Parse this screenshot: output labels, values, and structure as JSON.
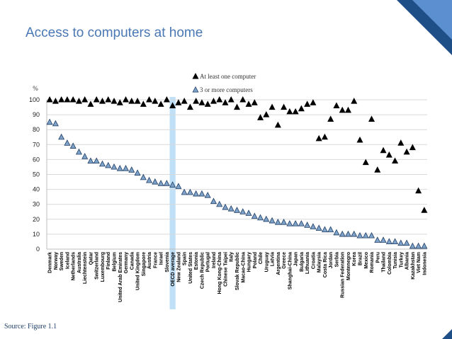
{
  "page": {
    "title": "Access to computers at home",
    "source": "Source: Figure 1.1"
  },
  "chart_data": {
    "type": "scatter",
    "ylabel": "%",
    "ylim": [
      0,
      100
    ],
    "yticks": [
      0,
      10,
      20,
      30,
      40,
      50,
      60,
      70,
      80,
      90,
      100
    ],
    "grid": true,
    "legend_position": "top-center",
    "highlight_category": "OECD average",
    "highlight_color": "#bfe0f7",
    "categories": [
      "Denmark",
      "Norway",
      "Sweden",
      "Iceland",
      "Netherlands",
      "Australia",
      "Liechtenstein",
      "Qatar",
      "Switzerland",
      "Luxembourg",
      "Finland",
      "Belgium",
      "United Arab Emirates",
      "Germany",
      "Canada",
      "United Kingdom",
      "Singapore",
      "Austria",
      "France",
      "Israel",
      "Slovenia",
      "OECD average",
      "New Zealand",
      "Spain",
      "United States",
      "Estonia",
      "Czech Republic",
      "Portugal",
      "Ireland",
      "Hong Kong-China",
      "Chinese Taipei",
      "Italy",
      "Slovak Republic",
      "Macao-China",
      "Hungary",
      "Poland",
      "Chile",
      "Uruguay",
      "Latvia",
      "Argentina",
      "Greece",
      "Shanghai-China",
      "Japan",
      "Bulgaria",
      "Lithuania",
      "Croatia",
      "Malaysia",
      "Costa Rica",
      "Jordan",
      "Serbia",
      "Russian Federation",
      "Montenegro",
      "Korea",
      "Brazil",
      "Mexico",
      "Romania",
      "Peru",
      "Thailand",
      "Colombia",
      "Tunisia",
      "Turkey",
      "Albania",
      "Kazakhstan",
      "Viet Nam",
      "Indonesia"
    ],
    "series": [
      {
        "name": "At least one computer",
        "marker": "triangle",
        "color": "#000000",
        "values": [
          100,
          99,
          100,
          100,
          100,
          99,
          100,
          97,
          100,
          99,
          100,
          99,
          98,
          100,
          99,
          99,
          97,
          100,
          99,
          97,
          100,
          96,
          98,
          99,
          95,
          99,
          98,
          97,
          99,
          100,
          98,
          100,
          95,
          100,
          97,
          98,
          88,
          90,
          95,
          83,
          95,
          92,
          92,
          94,
          97,
          98,
          74,
          75,
          87,
          96,
          93,
          93,
          99,
          73,
          58,
          87,
          53,
          66,
          63,
          59,
          71,
          65,
          68,
          39,
          26
        ]
      },
      {
        "name": "3 or more computers",
        "marker": "triangle",
        "color": "#7fa2c8",
        "values": [
          85,
          84,
          75,
          71,
          69,
          65,
          62,
          59,
          59,
          57,
          56,
          55,
          54,
          54,
          53,
          51,
          48,
          46,
          45,
          44,
          44,
          43,
          42,
          38,
          38,
          37,
          37,
          36,
          32,
          30,
          28,
          27,
          26,
          25,
          24,
          22,
          21,
          20,
          19,
          18,
          18,
          17,
          17,
          17,
          16,
          15,
          14,
          13,
          13,
          11,
          10,
          10,
          10,
          9,
          9,
          9,
          6,
          6,
          5,
          5,
          4,
          4,
          2,
          2,
          2
        ]
      }
    ]
  }
}
